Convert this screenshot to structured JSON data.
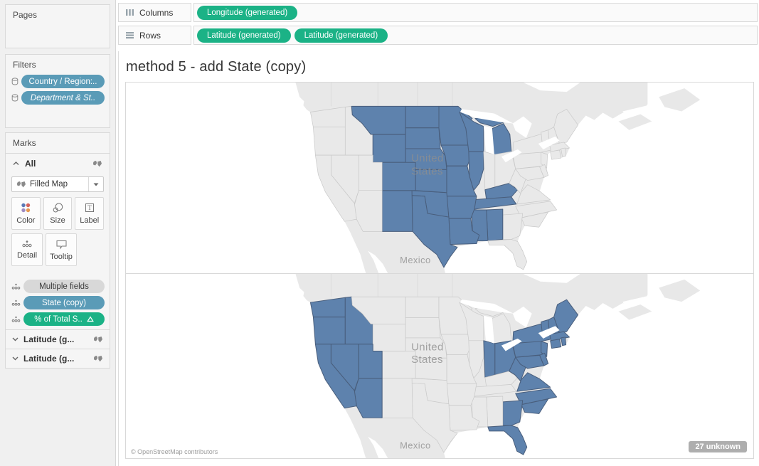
{
  "pages": {
    "label": "Pages"
  },
  "filters": {
    "label": "Filters",
    "pills": [
      {
        "label": "Country / Region:..",
        "italic": false
      },
      {
        "label": "Department & St..",
        "italic": true
      }
    ]
  },
  "marks": {
    "label": "Marks",
    "all_label": "All",
    "mark_type": "Filled Map",
    "buttons": [
      {
        "label": "Color"
      },
      {
        "label": "Size"
      },
      {
        "label": "Label"
      },
      {
        "label": "Detail"
      },
      {
        "label": "Tooltip"
      }
    ],
    "pills": [
      {
        "label": "Multiple fields",
        "type": "gray"
      },
      {
        "label": "State (copy)",
        "type": "blue"
      },
      {
        "label": "% of Total S..",
        "type": "green",
        "delta": true
      }
    ],
    "cards": [
      {
        "label": "Latitude (g..."
      },
      {
        "label": "Latitude (g..."
      }
    ]
  },
  "shelves": {
    "columns": {
      "label": "Columns",
      "pills": [
        "Longitude (generated)"
      ]
    },
    "rows": {
      "label": "Rows",
      "pills": [
        "Latitude (generated)",
        "Latitude (generated)"
      ]
    }
  },
  "sheet": {
    "title": "method 5 - add State (copy)"
  },
  "map": {
    "attribution": "© OpenStreetMap contributors",
    "badge": "27 unknown",
    "labels": {
      "country_line1": "United",
      "country_line2": "States",
      "mexico": "Mexico"
    },
    "panes": [
      {
        "name": "top",
        "selected_states": [
          "MT",
          "ND",
          "SD",
          "MN",
          "WI",
          "MI",
          "WY",
          "NE",
          "IA",
          "IL",
          "CO",
          "KS",
          "MO",
          "KY",
          "TN",
          "NM",
          "OK",
          "AR",
          "TX",
          "LA",
          "MS",
          "AL"
        ]
      },
      {
        "name": "bottom",
        "selected_states": [
          "WA",
          "OR",
          "ID",
          "CA",
          "NV",
          "UT",
          "AZ",
          "IN",
          "OH",
          "WV",
          "VA",
          "MD",
          "DE",
          "PA",
          "NJ",
          "NY",
          "CT",
          "RI",
          "MA",
          "VT",
          "NH",
          "ME",
          "NC",
          "SC",
          "GA",
          "FL"
        ]
      }
    ],
    "colors": {
      "green_pill": "#1BB286",
      "blue_pill": "#5A9BB7",
      "selected_fill": "#5E82AD",
      "selected_stroke": "#495E7C",
      "land": "#E8E8E8",
      "ocean": "#FFFFFF"
    }
  }
}
